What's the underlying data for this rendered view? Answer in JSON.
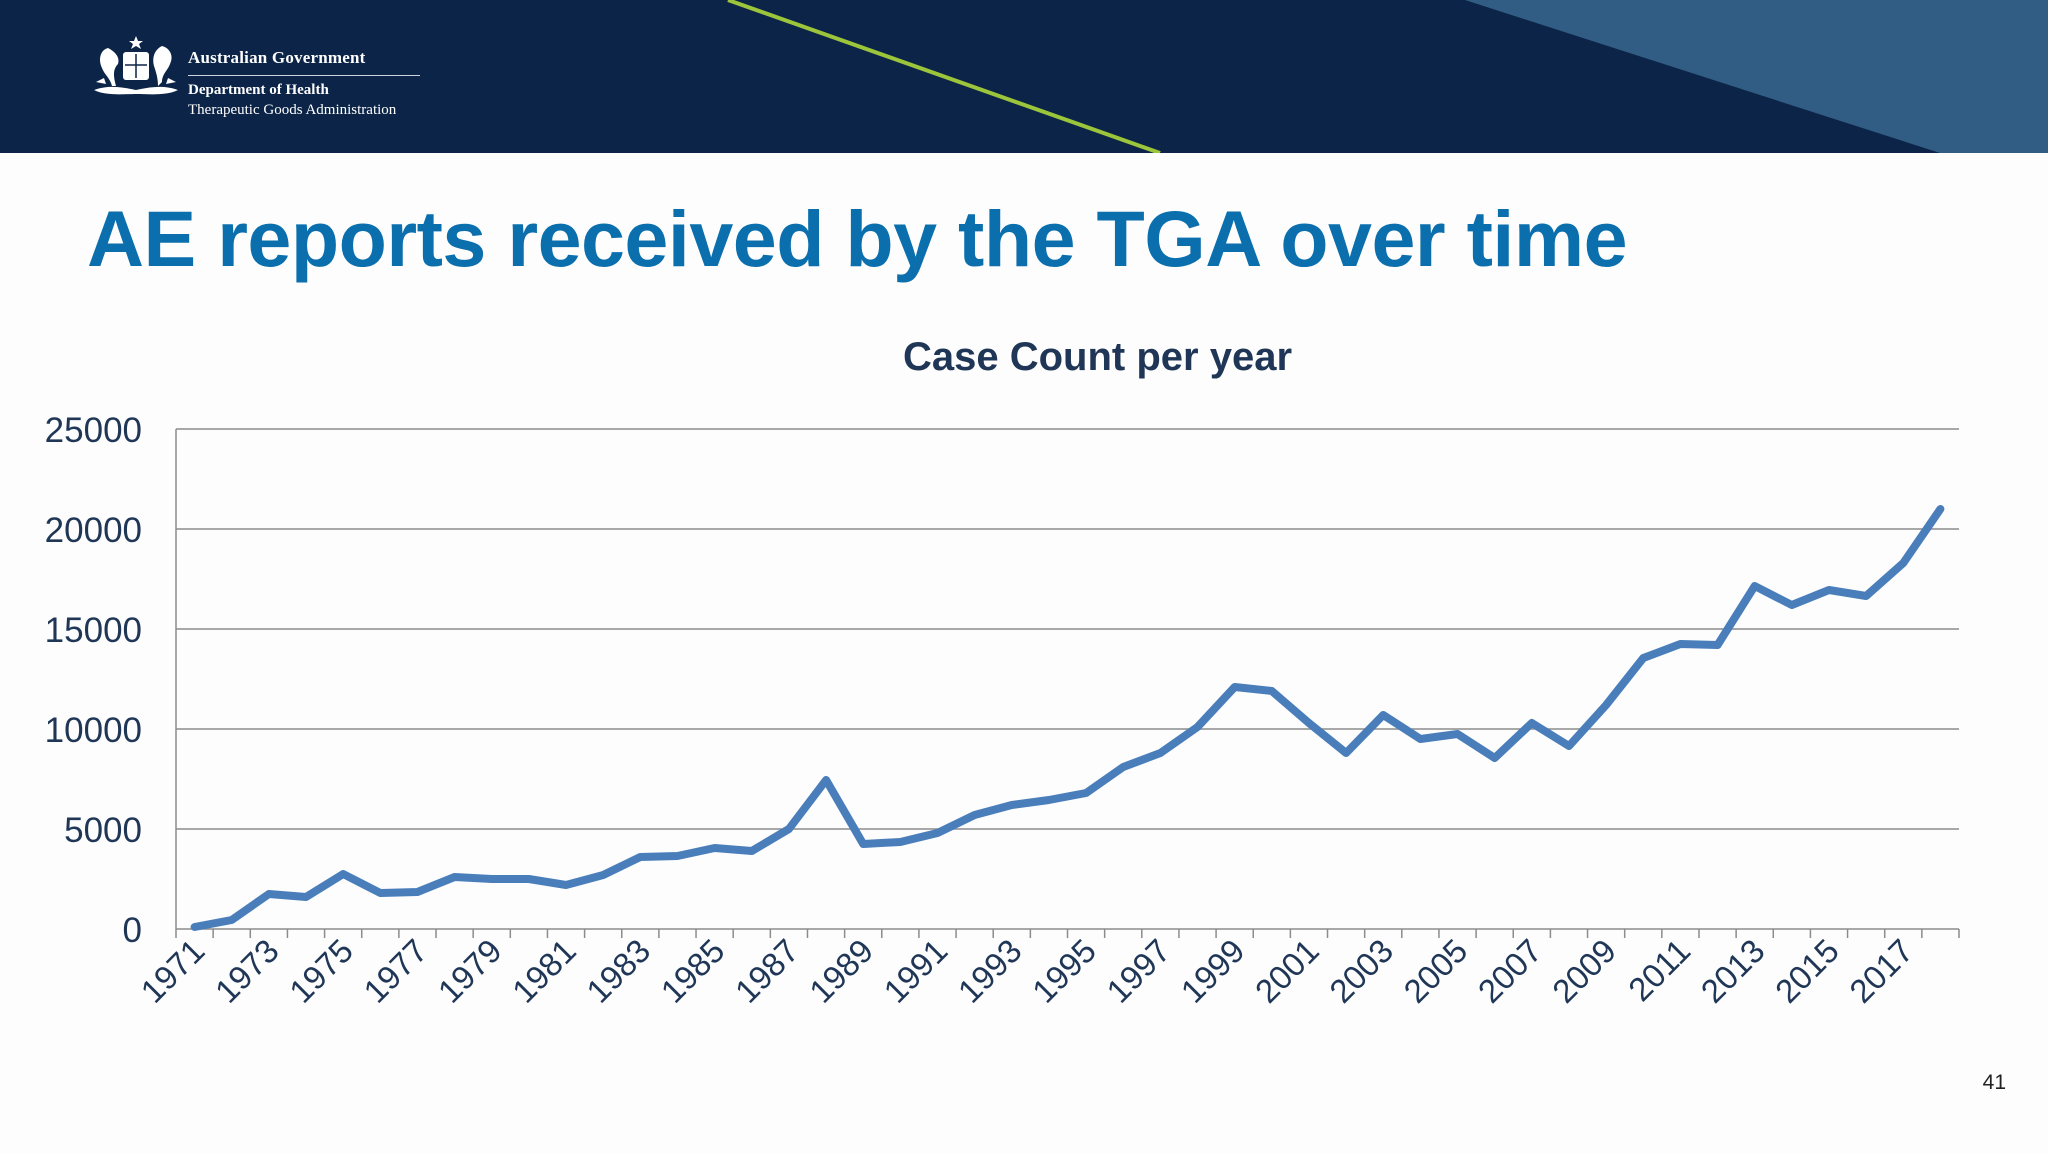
{
  "header": {
    "government": "Australian Government",
    "department": "Department of Health",
    "agency": "Therapeutic Goods Administration",
    "logo_icon": "coat-of-arms-icon",
    "colors": {
      "navy": "#0b2447",
      "steel_blue": "#315d84",
      "accent_green": "#9cc53c"
    }
  },
  "slide": {
    "title": "AE reports received by the TGA over time",
    "page_number": "41"
  },
  "chart_data": {
    "type": "line",
    "title": "Case Count per year",
    "xlabel": "",
    "ylabel": "",
    "ylim": [
      0,
      25000
    ],
    "yticks": [
      0,
      5000,
      10000,
      15000,
      20000,
      25000
    ],
    "x": [
      1971,
      1972,
      1973,
      1974,
      1975,
      1976,
      1977,
      1978,
      1979,
      1980,
      1981,
      1982,
      1983,
      1984,
      1985,
      1986,
      1987,
      1988,
      1989,
      1990,
      1991,
      1992,
      1993,
      1994,
      1995,
      1996,
      1997,
      1998,
      1999,
      2000,
      2001,
      2002,
      2003,
      2004,
      2005,
      2006,
      2007,
      2008,
      2009,
      2010,
      2011,
      2012,
      2013,
      2014,
      2015,
      2016,
      2017,
      2018
    ],
    "x_tick_labels": [
      "1971",
      "1973",
      "1975",
      "1977",
      "1979",
      "1981",
      "1983",
      "1985",
      "1987",
      "1989",
      "1991",
      "1993",
      "1995",
      "1997",
      "1999",
      "2001",
      "2003",
      "2005",
      "2007",
      "2009",
      "2011",
      "2013",
      "2015",
      "2017"
    ],
    "series": [
      {
        "values": [
          100,
          450,
          1750,
          1600,
          2750,
          1800,
          1850,
          2600,
          2500,
          2500,
          2200,
          2700,
          3600,
          3650,
          4050,
          3900,
          5000,
          7450,
          4250,
          4350,
          4800,
          5700,
          6200,
          6450,
          6800,
          8100,
          8800,
          10100,
          12100,
          11900,
          10300,
          8800,
          10700,
          9500,
          9750,
          8550,
          10300,
          9150,
          11200,
          13550,
          14250,
          14200,
          17150,
          16200,
          16950,
          16650,
          18300,
          21000
        ],
        "color": "#4a7ebb"
      }
    ],
    "grid": "horizontal",
    "legend": "none"
  }
}
